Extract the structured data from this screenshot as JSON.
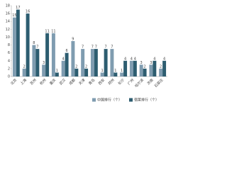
{
  "chart_data": {
    "type": "bar",
    "categories": [
      "北京",
      "上海",
      "苏州",
      "杭州",
      "重庆",
      "武汉",
      "成都",
      "天津",
      "青岛",
      "西安",
      "郑州",
      "长沙",
      "广州",
      "哈尔滨",
      "济南",
      "石家庄"
    ],
    "series": [
      {
        "name": "中国排行（个）",
        "color": "#7f9cb0",
        "values": [
          15,
          2,
          8,
          3,
          11,
          4,
          9,
          7,
          7,
          1,
          7,
          1,
          4,
          3,
          3,
          2
        ]
      },
      {
        "name": "宿莱排行（个）",
        "color": "#2d5d70",
        "values": [
          17,
          16,
          7,
          11,
          1,
          6,
          2,
          2,
          7,
          7,
          1,
          4,
          4,
          2,
          4,
          4
        ]
      }
    ],
    "ylim": [
      0,
      18
    ],
    "yticks": [
      0,
      2,
      4,
      6,
      8,
      10,
      12,
      14,
      16,
      18
    ],
    "grid": false
  }
}
